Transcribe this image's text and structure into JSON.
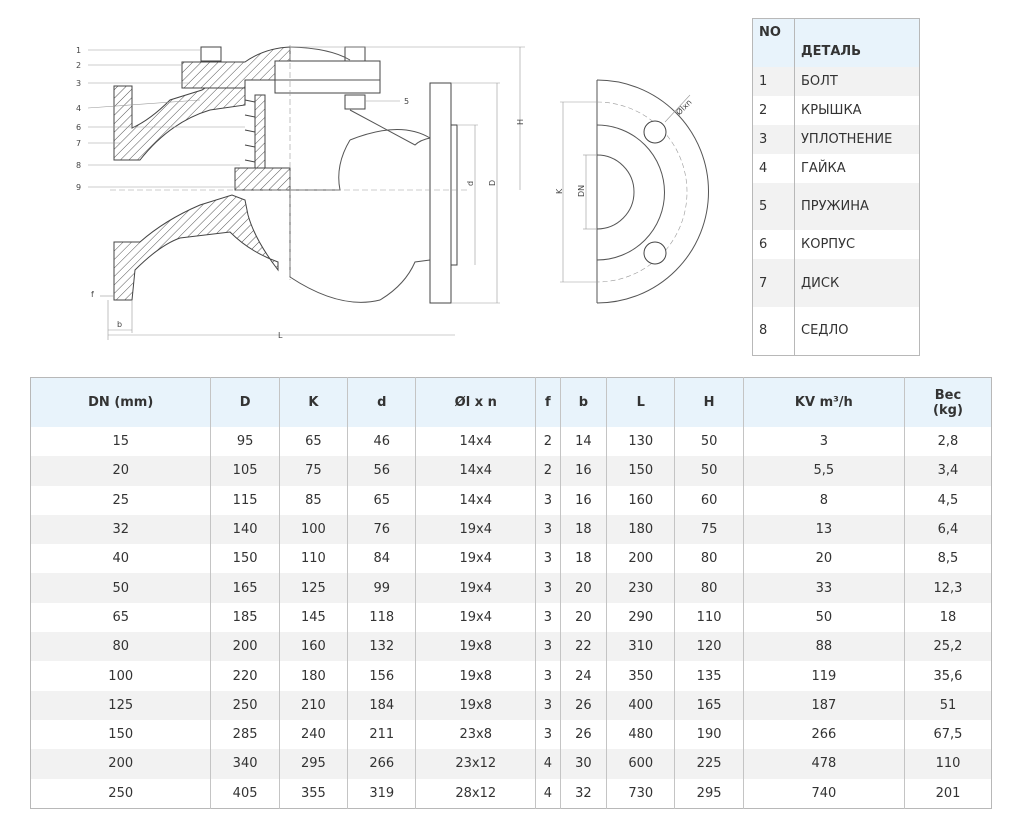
{
  "drawing": {
    "callouts": [
      "1",
      "2",
      "3",
      "4",
      "6",
      "7",
      "8",
      "9",
      "5"
    ],
    "dims": {
      "H": "H",
      "d": "d",
      "D": "D",
      "f": "f",
      "b": "b",
      "L": "L",
      "K": "K",
      "DN": "DN",
      "bolt": "Ølxn"
    }
  },
  "parts_table": {
    "headers": {
      "no": "NO",
      "detail": "ДЕТАЛЬ"
    },
    "rows": [
      {
        "no": "1",
        "name": "БОЛТ"
      },
      {
        "no": "2",
        "name": "КРЫШКА"
      },
      {
        "no": "3",
        "name": "УПЛОТНЕНИЕ"
      },
      {
        "no": "4",
        "name": "ГАЙКА"
      },
      {
        "no": "5",
        "name": "ПРУЖИНА"
      },
      {
        "no": "6",
        "name": "КОРПУС"
      },
      {
        "no": "7",
        "name": "ДИСК"
      },
      {
        "no": "8",
        "name": "СЕДЛО"
      }
    ]
  },
  "dims_table": {
    "headers": [
      "DN  (mm)",
      "D",
      "K",
      "d",
      "Øl x n",
      "f",
      "b",
      "L",
      "H",
      "KV m³/h",
      "Вес (kg)"
    ],
    "rows": [
      [
        "15",
        "95",
        "65",
        "46",
        "14x4",
        "2",
        "14",
        "130",
        "50",
        "3",
        "2,8"
      ],
      [
        "20",
        "105",
        "75",
        "56",
        "14x4",
        "2",
        "16",
        "150",
        "50",
        "5,5",
        "3,4"
      ],
      [
        "25",
        "115",
        "85",
        "65",
        "14x4",
        "3",
        "16",
        "160",
        "60",
        "8",
        "4,5"
      ],
      [
        "32",
        "140",
        "100",
        "76",
        "19x4",
        "3",
        "18",
        "180",
        "75",
        "13",
        "6,4"
      ],
      [
        "40",
        "150",
        "110",
        "84",
        "19x4",
        "3",
        "18",
        "200",
        "80",
        "20",
        "8,5"
      ],
      [
        "50",
        "165",
        "125",
        "99",
        "19x4",
        "3",
        "20",
        "230",
        "80",
        "33",
        "12,3"
      ],
      [
        "65",
        "185",
        "145",
        "118",
        "19x4",
        "3",
        "20",
        "290",
        "110",
        "50",
        "18"
      ],
      [
        "80",
        "200",
        "160",
        "132",
        "19x8",
        "3",
        "22",
        "310",
        "120",
        "88",
        "25,2"
      ],
      [
        "100",
        "220",
        "180",
        "156",
        "19x8",
        "3",
        "24",
        "350",
        "135",
        "119",
        "35,6"
      ],
      [
        "125",
        "250",
        "210",
        "184",
        "19x8",
        "3",
        "26",
        "400",
        "165",
        "187",
        "51"
      ],
      [
        "150",
        "285",
        "240",
        "211",
        "23x8",
        "3",
        "26",
        "480",
        "190",
        "266",
        "67,5"
      ],
      [
        "200",
        "340",
        "295",
        "266",
        "23x12",
        "4",
        "30",
        "600",
        "225",
        "478",
        "110"
      ],
      [
        "250",
        "405",
        "355",
        "319",
        "28x12",
        "4",
        "32",
        "730",
        "295",
        "740",
        "201"
      ]
    ]
  }
}
